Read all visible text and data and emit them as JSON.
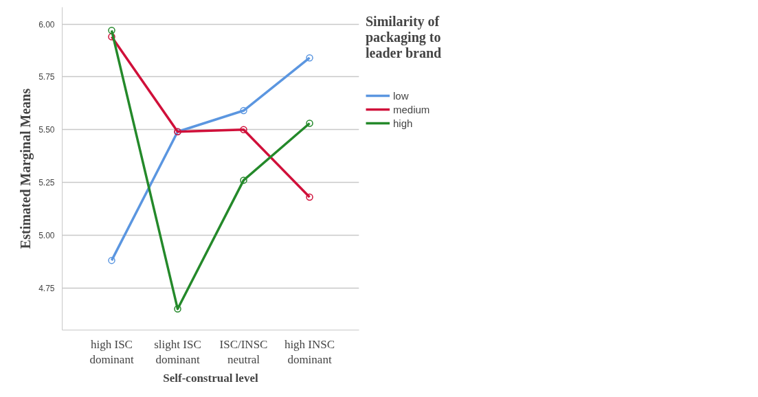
{
  "chart_data": {
    "type": "line",
    "xlabel": "Self-construal level",
    "ylabel": "Estimated Marginal Means",
    "legend_title": "Similarity of packaging to leader brand",
    "categories": [
      "high ISC dominant",
      "slight ISC dominant",
      "ISC/INSC neutral",
      "high INSC dominant"
    ],
    "series": [
      {
        "name": "low",
        "color": "#5b96e0",
        "values": [
          4.88,
          5.49,
          5.59,
          5.84
        ]
      },
      {
        "name": "medium",
        "color": "#d0103a",
        "values": [
          5.94,
          5.49,
          5.5,
          5.18
        ]
      },
      {
        "name": "high",
        "color": "#24892a",
        "values": [
          5.97,
          4.65,
          5.26,
          5.53
        ]
      }
    ],
    "ylim": [
      4.55,
      6.08
    ],
    "yticks": [
      {
        "value": 4.75,
        "label": "4.75"
      },
      {
        "value": 5.0,
        "label": "5.00"
      },
      {
        "value": 5.25,
        "label": "5.25"
      },
      {
        "value": 5.5,
        "label": "5.50"
      },
      {
        "value": 5.75,
        "label": "5.75"
      },
      {
        "value": 6.0,
        "label": "6.00"
      }
    ],
    "grid": "y",
    "legend": "right",
    "marker": "circle",
    "line_style": "solid"
  }
}
